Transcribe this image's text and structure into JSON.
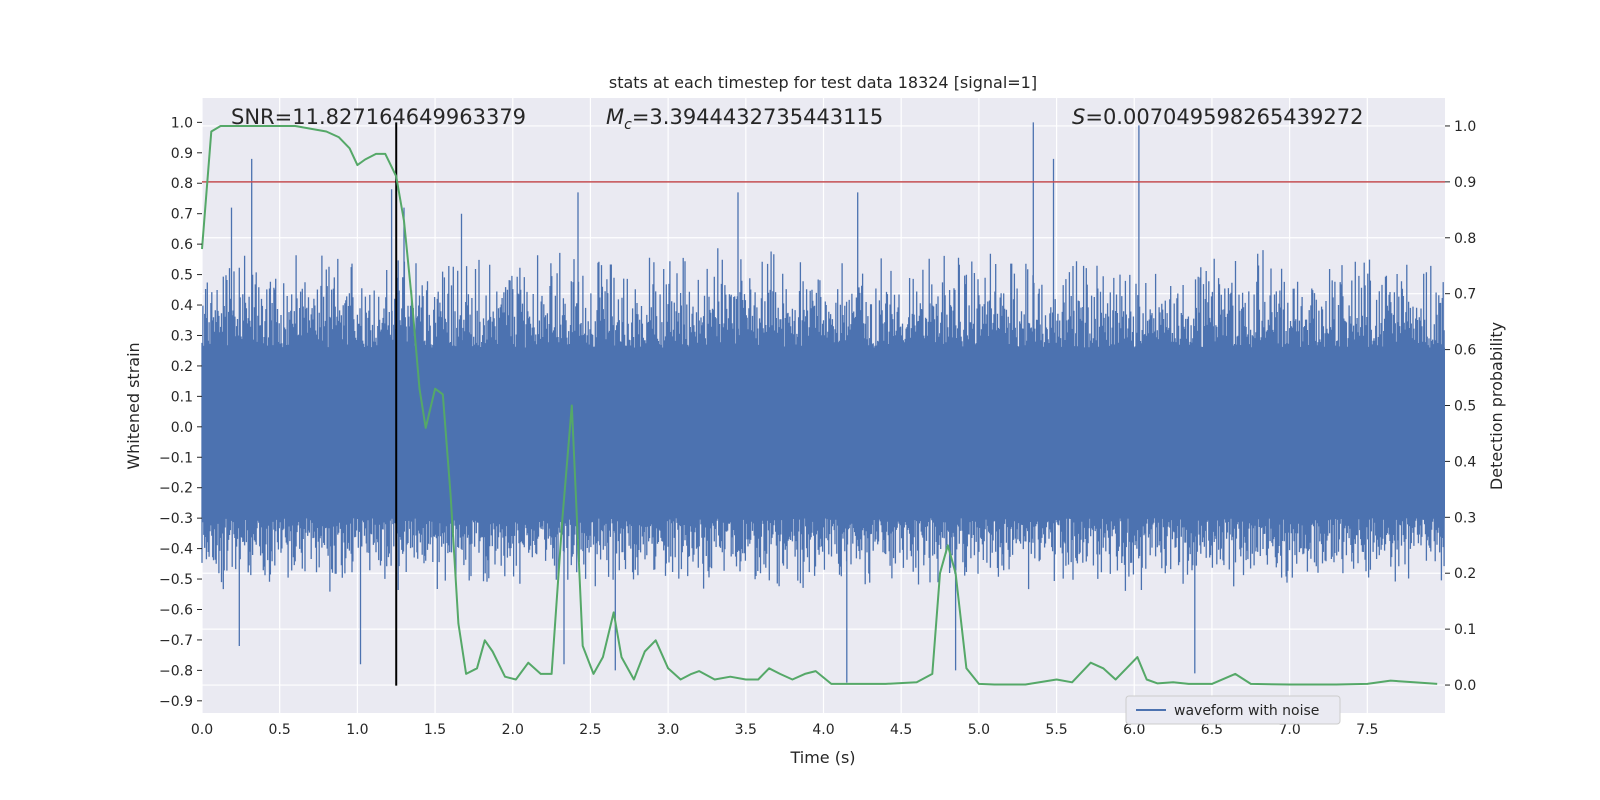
{
  "chart_data": {
    "type": "line",
    "title": "stats at each timestep for test data 18324 [signal=1]",
    "xlabel": "Time (s)",
    "ylabel": "Whitened strain",
    "y2label": "Detection probability",
    "xlim": [
      0.0,
      8.0
    ],
    "ylim": [
      -0.94,
      1.08
    ],
    "y2lim": [
      -0.05,
      1.05
    ],
    "xticks": [
      "0.0",
      "0.5",
      "1.0",
      "1.5",
      "2.0",
      "2.5",
      "3.0",
      "3.5",
      "4.0",
      "4.5",
      "5.0",
      "5.5",
      "6.0",
      "6.5",
      "7.0",
      "7.5"
    ],
    "yticks": [
      "1.0",
      "0.9",
      "0.8",
      "0.7",
      "0.6",
      "0.5",
      "0.4",
      "0.3",
      "0.2",
      "0.1",
      "0.0",
      "-0.1",
      "-0.2",
      "-0.3",
      "-0.4",
      "-0.5",
      "-0.6",
      "-0.7",
      "-0.8",
      "-0.9"
    ],
    "y2ticks": [
      "1.0",
      "0.9",
      "0.8",
      "0.7",
      "0.6",
      "0.5",
      "0.4",
      "0.3",
      "0.2",
      "0.1",
      "0.0"
    ],
    "grid": true,
    "legend_position": "lower-right",
    "annotations": {
      "snr": "SNR=11.827164649963379",
      "mc_prefix": "M",
      "mc_sub": "c",
      "mc_value": "=3.3944432735443115",
      "s_prefix": "S",
      "s_value": "=0.007049598265439272"
    },
    "threshold": {
      "value": 0.9,
      "axis": "y2",
      "color": "#c44e52"
    },
    "marker_line": {
      "x": 1.25,
      "y_range": [
        -0.85,
        1.0
      ],
      "color": "#000000"
    },
    "series": [
      {
        "name": "waveform with noise",
        "axis": "y",
        "color": "#4c72b0",
        "render": "noise-band",
        "core_range": [
          -0.3,
          0.26
        ],
        "typical_peak_range": [
          -0.55,
          0.6
        ],
        "notable_spikes": [
          {
            "x": 0.32,
            "y": 0.88
          },
          {
            "x": 0.19,
            "y": 0.72
          },
          {
            "x": 0.24,
            "y": -0.72
          },
          {
            "x": 1.02,
            "y": -0.78
          },
          {
            "x": 1.22,
            "y": 0.78
          },
          {
            "x": 1.3,
            "y": 0.72
          },
          {
            "x": 1.67,
            "y": 0.7
          },
          {
            "x": 2.33,
            "y": -0.78
          },
          {
            "x": 2.42,
            "y": 0.77
          },
          {
            "x": 2.66,
            "y": -0.8
          },
          {
            "x": 3.45,
            "y": 0.77
          },
          {
            "x": 4.15,
            "y": -0.84
          },
          {
            "x": 4.22,
            "y": 0.77
          },
          {
            "x": 5.35,
            "y": 1.0
          },
          {
            "x": 5.48,
            "y": 0.88
          },
          {
            "x": 6.03,
            "y": 0.99
          },
          {
            "x": 6.39,
            "y": -0.81
          },
          {
            "x": 4.85,
            "y": -0.8
          }
        ]
      },
      {
        "name": "",
        "axis": "y2",
        "color": "#55a868",
        "render": "line",
        "x": [
          0.0,
          0.06,
          0.12,
          0.3,
          0.6,
          0.8,
          0.88,
          0.95,
          1.0,
          1.05,
          1.12,
          1.18,
          1.25,
          1.3,
          1.35,
          1.4,
          1.44,
          1.5,
          1.55,
          1.6,
          1.65,
          1.7,
          1.77,
          1.82,
          1.87,
          1.95,
          2.02,
          2.1,
          2.18,
          2.25,
          2.32,
          2.38,
          2.45,
          2.52,
          2.58,
          2.65,
          2.7,
          2.78,
          2.85,
          2.92,
          3.0,
          3.08,
          3.15,
          3.2,
          3.3,
          3.4,
          3.5,
          3.58,
          3.65,
          3.72,
          3.8,
          3.88,
          3.95,
          4.05,
          4.2,
          4.4,
          4.6,
          4.7,
          4.75,
          4.8,
          4.85,
          4.92,
          5.0,
          5.1,
          5.3,
          5.5,
          5.6,
          5.72,
          5.8,
          5.88,
          5.95,
          6.02,
          6.08,
          6.15,
          6.25,
          6.35,
          6.5,
          6.65,
          6.75,
          7.0,
          7.3,
          7.5,
          7.65,
          7.8,
          7.95
        ],
        "values": [
          0.78,
          0.99,
          1.0,
          1.0,
          1.0,
          0.99,
          0.98,
          0.96,
          0.93,
          0.94,
          0.95,
          0.95,
          0.91,
          0.83,
          0.69,
          0.53,
          0.46,
          0.53,
          0.52,
          0.34,
          0.11,
          0.02,
          0.03,
          0.08,
          0.06,
          0.015,
          0.01,
          0.04,
          0.02,
          0.02,
          0.3,
          0.5,
          0.07,
          0.02,
          0.05,
          0.13,
          0.05,
          0.01,
          0.06,
          0.08,
          0.03,
          0.01,
          0.02,
          0.025,
          0.01,
          0.015,
          0.01,
          0.01,
          0.03,
          0.02,
          0.01,
          0.02,
          0.025,
          0.002,
          0.002,
          0.002,
          0.005,
          0.02,
          0.2,
          0.25,
          0.2,
          0.03,
          0.002,
          0.001,
          0.001,
          0.01,
          0.005,
          0.04,
          0.03,
          0.01,
          0.03,
          0.05,
          0.01,
          0.003,
          0.005,
          0.002,
          0.002,
          0.02,
          0.002,
          0.001,
          0.001,
          0.002,
          0.008,
          0.005,
          0.002
        ]
      }
    ]
  }
}
